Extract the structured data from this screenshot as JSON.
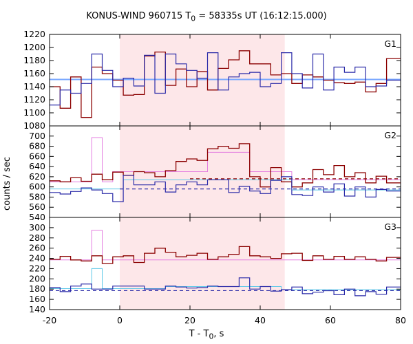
{
  "title": {
    "main": "KONUS-WIND 960715 T",
    "sub": "0",
    "rest": " = 58335s UT (16:12:15.000)"
  },
  "ylabel": "counts / sec",
  "xlabel": {
    "main": "T - T",
    "sub": "0",
    "rest": ", s"
  },
  "chart_data": {
    "type": "line",
    "x_range": [
      -20,
      80
    ],
    "x_ticks": [
      -20,
      0,
      20,
      40,
      60,
      80
    ],
    "shaded_interval": [
      0,
      47
    ],
    "colors": {
      "red": "#8b0000",
      "blue": "#2a2aa8",
      "pink": "#e47ee0",
      "cyan": "#5cc8e8",
      "shade": "#fde7e9",
      "fit": "#7aa8ff"
    },
    "bin_edges": [
      -20,
      -17,
      -14,
      -11,
      -8,
      -5,
      -2,
      1,
      4,
      7,
      10,
      13,
      16,
      19,
      22,
      25,
      28,
      31,
      34,
      37,
      40,
      43,
      46,
      49,
      52,
      55,
      58,
      61,
      64,
      67,
      70,
      73,
      76,
      79,
      80
    ],
    "panels": [
      {
        "label": "G1",
        "ylim": [
          1080,
          1220
        ],
        "yticks": [
          1080,
          1100,
          1120,
          1140,
          1160,
          1180,
          1200,
          1220
        ],
        "red": [
          1140,
          1107,
          1155,
          1093,
          1170,
          1160,
          1150,
          1127,
          1128,
          1187,
          1193,
          1142,
          1167,
          1140,
          1163,
          1135,
          1168,
          1181,
          1195,
          1175,
          1175,
          1158,
          1160,
          1145,
          1158,
          1155,
          1150,
          1146,
          1145,
          1147,
          1132,
          1145,
          1183,
          1183
        ],
        "blue": [
          1112,
          1135,
          1130,
          1145,
          1190,
          1165,
          1140,
          1153,
          1141,
          1188,
          1130,
          1190,
          1175,
          1165,
          1153,
          1192,
          1135,
          1155,
          1160,
          1162,
          1140,
          1145,
          1192,
          1160,
          1138,
          1190,
          1135,
          1170,
          1162,
          1170,
          1140,
          1141,
          1150,
          1150
        ],
        "fit_level": 1151,
        "series": []
      },
      {
        "label": "G2",
        "ylim": [
          540,
          720
        ],
        "yticks": [
          540,
          560,
          580,
          600,
          620,
          640,
          660,
          680,
          700
        ],
        "red": [
          612,
          610,
          618,
          611,
          625,
          614,
          629,
          623,
          630,
          628,
          620,
          632,
          650,
          655,
          652,
          675,
          680,
          676,
          685,
          620,
          600,
          638,
          610,
          600,
          608,
          634,
          624,
          642,
          620,
          628,
          608,
          621,
          608,
          608
        ],
        "blue": [
          589,
          586,
          591,
          598,
          594,
          587,
          571,
          623,
          604,
          604,
          610,
          590,
          604,
          610,
          604,
          614,
          614,
          589,
          601,
          592,
          587,
          613,
          620,
          585,
          583,
          600,
          590,
          606,
          582,
          600,
          580,
          595,
          592,
          592
        ],
        "pink": [
          610,
          610,
          610,
          610,
          697,
          610,
          630,
          630,
          630,
          630,
          630,
          630,
          630,
          630,
          630,
          668,
          668,
          668,
          668,
          630,
          630,
          630,
          630,
          614,
          614,
          614,
          614,
          614,
          614,
          614,
          614,
          614,
          614,
          614
        ],
        "cyan": [
          596,
          596,
          596,
          596,
          596,
          596,
          596,
          614,
          614,
          614,
          614,
          614,
          614,
          614,
          614,
          614,
          614,
          614,
          614,
          614,
          614,
          614,
          614,
          594,
          594,
          594,
          594,
          594,
          594,
          594,
          594,
          594,
          594,
          594
        ],
        "dash_red": 616,
        "dash_blue": 596,
        "dash_red_from": 20,
        "dash_blue_from": 0
      },
      {
        "label": "G3",
        "ylim": [
          140,
          320
        ],
        "yticks": [
          140,
          160,
          180,
          200,
          220,
          240,
          260,
          280,
          300
        ],
        "red": [
          238,
          244,
          237,
          235,
          245,
          230,
          243,
          245,
          232,
          250,
          260,
          252,
          243,
          246,
          250,
          238,
          243,
          248,
          263,
          245,
          243,
          240,
          249,
          250,
          236,
          245,
          238,
          244,
          238,
          243,
          238,
          235,
          242,
          242
        ],
        "blue": [
          183,
          175,
          186,
          190,
          180,
          180,
          186,
          186,
          186,
          180,
          180,
          186,
          184,
          182,
          183,
          186,
          185,
          185,
          202,
          180,
          185,
          176,
          179,
          184,
          171,
          174,
          177,
          169,
          180,
          167,
          175,
          170,
          184,
          184
        ],
        "pink": [
          237,
          237,
          237,
          237,
          295,
          237,
          237,
          237,
          237,
          237,
          237,
          237,
          237,
          237,
          237,
          237,
          237,
          237,
          237,
          237,
          237,
          237,
          237,
          237,
          237,
          237,
          237,
          237,
          237,
          237,
          237,
          237,
          237,
          237
        ],
        "cyan": [
          181,
          181,
          181,
          181,
          220,
          181,
          181,
          181,
          181,
          181,
          181,
          185,
          185,
          185,
          185,
          185,
          185,
          185,
          185,
          185,
          185,
          185,
          179,
          179,
          179,
          179,
          179,
          179,
          179,
          179,
          179,
          179,
          179,
          179
        ],
        "dash_blue": 177,
        "dash_blue_from": -20
      }
    ]
  }
}
